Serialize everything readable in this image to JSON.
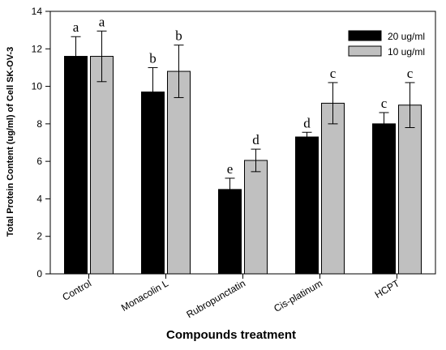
{
  "chart_data": {
    "type": "bar",
    "xlabel": "Compounds treatment",
    "ylabel": "Total Protein Content (ug/ml) of Cell SK-OV-3",
    "ylim": [
      0,
      14
    ],
    "yticks": [
      "0",
      "2",
      "4",
      "6",
      "8",
      "10",
      "12",
      "14"
    ],
    "categories": [
      "Control",
      "Monacolin L",
      "Rubropunctatin",
      "Cis-platinum",
      "HCPT"
    ],
    "series": [
      {
        "name": "20 ug/ml",
        "color": "#000000",
        "values": [
          11.6,
          9.7,
          4.5,
          7.3,
          8.0
        ],
        "errors": [
          1.05,
          1.3,
          0.6,
          0.25,
          0.6
        ],
        "letters": [
          "a",
          "b",
          "e",
          "d",
          "c"
        ]
      },
      {
        "name": "10 ug/ml",
        "color": "#c0c0c0",
        "values": [
          11.6,
          10.8,
          6.05,
          9.1,
          9.0
        ],
        "errors": [
          1.35,
          1.4,
          0.6,
          1.1,
          1.2
        ],
        "letters": [
          "a",
          "b",
          "d",
          "c",
          "c"
        ]
      }
    ],
    "legend": "top-right",
    "grid": false
  }
}
